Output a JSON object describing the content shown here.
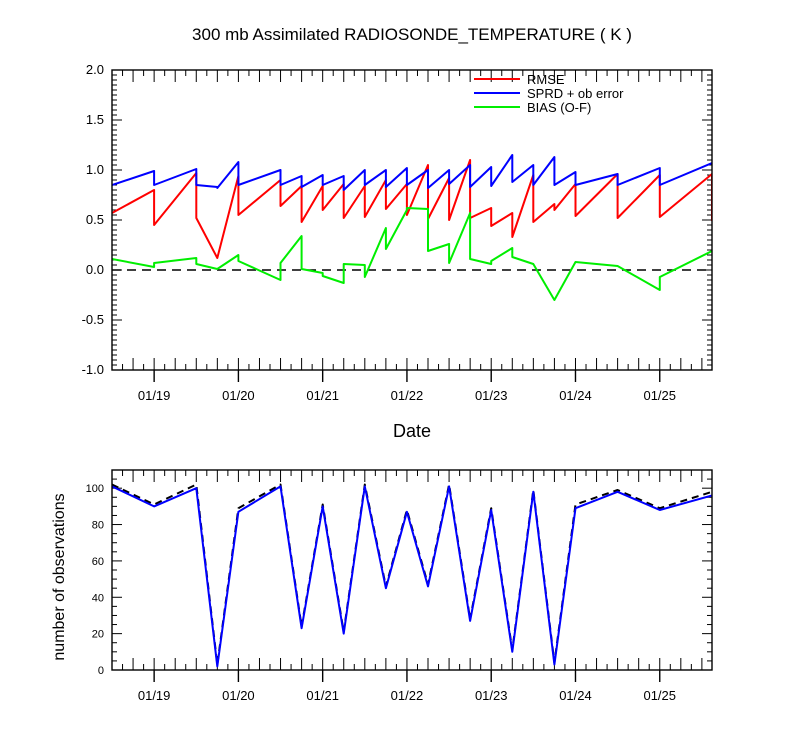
{
  "chart_data": [
    {
      "type": "line",
      "title": "300 mb Assimilated RADIOSONDE_TEMPERATURE ( K )",
      "xlabel": "Date",
      "ylabel": "",
      "xlim": [
        0,
        14.24
      ],
      "ylim": [
        -1.0,
        2.0
      ],
      "x_unit": "days from 01/18 12Z",
      "xticks": [
        {
          "x": 1,
          "label": "01/19"
        },
        {
          "x": 3,
          "label": "01/20"
        },
        {
          "x": 5,
          "label": "01/21"
        },
        {
          "x": 7,
          "label": "01/22"
        },
        {
          "x": 9,
          "label": "01/23"
        },
        {
          "x": 11,
          "label": "01/24"
        },
        {
          "x": 13,
          "label": "01/25"
        }
      ],
      "yticks": [
        -1.0,
        -0.5,
        0.0,
        0.5,
        1.0,
        1.5,
        2.0
      ],
      "ytick_labels": [
        "-1.0",
        "-0.5",
        "0.0",
        "0.5",
        "1.0",
        "1.5",
        "2.0"
      ],
      "zero_line": true,
      "legend_position": "top-right",
      "series": [
        {
          "name": "RMSE",
          "color": "#ff0000",
          "points": [
            [
              0,
              0.57
            ],
            [
              1,
              0.8
            ],
            [
              1,
              0.45
            ],
            [
              2,
              0.97
            ],
            [
              2,
              0.52
            ],
            [
              2.5,
              0.12
            ],
            [
              3,
              0.94
            ],
            [
              3,
              0.55
            ],
            [
              4,
              0.9
            ],
            [
              4,
              0.64
            ],
            [
              4.5,
              0.84
            ],
            [
              4.5,
              0.48
            ],
            [
              5,
              0.84
            ],
            [
              5,
              0.6
            ],
            [
              5.5,
              0.86
            ],
            [
              5.5,
              0.52
            ],
            [
              6,
              0.84
            ],
            [
              6,
              0.53
            ],
            [
              6.5,
              0.9
            ],
            [
              6.5,
              0.61
            ],
            [
              7,
              0.86
            ],
            [
              7,
              0.55
            ],
            [
              7.5,
              1.05
            ],
            [
              7.5,
              0.51
            ],
            [
              8,
              0.92
            ],
            [
              8,
              0.5
            ],
            [
              8.5,
              1.1
            ],
            [
              8.5,
              0.52
            ],
            [
              9,
              0.62
            ],
            [
              9,
              0.44
            ],
            [
              9.5,
              0.57
            ],
            [
              9.5,
              0.33
            ],
            [
              10,
              0.95
            ],
            [
              10,
              0.48
            ],
            [
              10.5,
              0.66
            ],
            [
              10.5,
              0.6
            ],
            [
              11,
              0.86
            ],
            [
              11,
              0.54
            ],
            [
              12,
              0.96
            ],
            [
              12,
              0.52
            ],
            [
              13,
              0.95
            ],
            [
              13,
              0.53
            ],
            [
              14.24,
              0.96
            ],
            [
              14.24,
              0.49
            ]
          ]
        },
        {
          "name": "SPRD + ob error",
          "color": "#0000ff",
          "points": [
            [
              0,
              0.85
            ],
            [
              1,
              0.99
            ],
            [
              1,
              0.85
            ],
            [
              2,
              1.01
            ],
            [
              2,
              0.85
            ],
            [
              2.5,
              0.83
            ],
            [
              2.5,
              0.82
            ],
            [
              3,
              1.08
            ],
            [
              3,
              0.85
            ],
            [
              4,
              1.0
            ],
            [
              4,
              0.85
            ],
            [
              4.5,
              0.94
            ],
            [
              4.5,
              0.83
            ],
            [
              5,
              0.95
            ],
            [
              5,
              0.85
            ],
            [
              5.5,
              0.94
            ],
            [
              5.5,
              0.8
            ],
            [
              6,
              1.0
            ],
            [
              6,
              0.85
            ],
            [
              6.5,
              1.0
            ],
            [
              6.5,
              0.83
            ],
            [
              7,
              1.02
            ],
            [
              7,
              0.85
            ],
            [
              7.5,
              1.0
            ],
            [
              7.5,
              0.82
            ],
            [
              8,
              1.0
            ],
            [
              8,
              0.86
            ],
            [
              8.5,
              1.05
            ],
            [
              8.5,
              0.83
            ],
            [
              9,
              1.03
            ],
            [
              9,
              0.84
            ],
            [
              9.5,
              1.15
            ],
            [
              9.5,
              0.88
            ],
            [
              10,
              1.05
            ],
            [
              10,
              0.85
            ],
            [
              10.5,
              1.13
            ],
            [
              10.5,
              0.85
            ],
            [
              11,
              0.98
            ],
            [
              11,
              0.85
            ],
            [
              12,
              0.96
            ],
            [
              12,
              0.85
            ],
            [
              13,
              1.02
            ],
            [
              13,
              0.85
            ],
            [
              14.24,
              1.07
            ]
          ]
        },
        {
          "name": "BIAS (O-F)",
          "color": "#00ee00",
          "points": [
            [
              0,
              0.11
            ],
            [
              1,
              0.03
            ],
            [
              1,
              0.07
            ],
            [
              2,
              0.12
            ],
            [
              2,
              0.06
            ],
            [
              2.5,
              0.01
            ],
            [
              3,
              0.15
            ],
            [
              3,
              0.09
            ],
            [
              4,
              -0.1
            ],
            [
              4,
              0.07
            ],
            [
              4.5,
              0.34
            ],
            [
              4.5,
              0.01
            ],
            [
              5,
              -0.03
            ],
            [
              5,
              -0.06
            ],
            [
              5.5,
              -0.13
            ],
            [
              5.5,
              0.06
            ],
            [
              6,
              0.05
            ],
            [
              6,
              -0.07
            ],
            [
              6.5,
              0.42
            ],
            [
              6.5,
              0.21
            ],
            [
              7,
              0.6
            ],
            [
              7,
              0.62
            ],
            [
              7.5,
              0.61
            ],
            [
              7.5,
              0.19
            ],
            [
              8,
              0.26
            ],
            [
              8,
              0.07
            ],
            [
              8.5,
              0.57
            ],
            [
              8.5,
              0.11
            ],
            [
              9,
              0.06
            ],
            [
              9,
              0.09
            ],
            [
              9.5,
              0.22
            ],
            [
              9.5,
              0.13
            ],
            [
              10,
              0.06
            ],
            [
              10.5,
              -0.3
            ],
            [
              11,
              0.08
            ],
            [
              12,
              0.04
            ],
            [
              13,
              -0.2
            ],
            [
              13,
              -0.07
            ],
            [
              14.24,
              0.19
            ]
          ]
        }
      ]
    },
    {
      "type": "line",
      "title": "",
      "xlabel": "",
      "ylabel": "number of observations",
      "xlim": [
        0,
        14.24
      ],
      "ylim": [
        0,
        110
      ],
      "x_unit": "days from 01/18 12Z",
      "xticks": [
        {
          "x": 1,
          "label": "01/19"
        },
        {
          "x": 3,
          "label": "01/20"
        },
        {
          "x": 5,
          "label": "01/21"
        },
        {
          "x": 7,
          "label": "01/22"
        },
        {
          "x": 9,
          "label": "01/23"
        },
        {
          "x": 11,
          "label": "01/24"
        },
        {
          "x": 13,
          "label": "01/25"
        }
      ],
      "yticks": [
        0,
        20,
        40,
        60,
        80,
        100
      ],
      "ytick_labels": [
        "0",
        "20",
        "40",
        "60",
        "80",
        "100"
      ],
      "series": [
        {
          "style": "dashed",
          "color": "#000000",
          "points": [
            [
              0,
              102
            ],
            [
              1,
              91
            ],
            [
              2,
              102
            ],
            [
              2.5,
              3
            ],
            [
              3,
              89
            ],
            [
              4,
              102
            ],
            [
              4.5,
              24
            ],
            [
              5,
              91
            ],
            [
              5.5,
              21
            ],
            [
              6,
              102
            ],
            [
              6.5,
              46
            ],
            [
              7,
              88
            ],
            [
              7.5,
              47
            ],
            [
              8,
              102
            ],
            [
              8.5,
              28
            ],
            [
              9,
              89
            ],
            [
              9.5,
              11
            ],
            [
              10,
              99
            ],
            [
              10.5,
              4
            ],
            [
              11,
              91
            ],
            [
              12,
              99
            ],
            [
              13,
              89
            ],
            [
              14.24,
              98
            ]
          ]
        },
        {
          "style": "solid",
          "color": "#0000ff",
          "points": [
            [
              0,
              101
            ],
            [
              1,
              90
            ],
            [
              2,
              100
            ],
            [
              2.5,
              2
            ],
            [
              3,
              87
            ],
            [
              4,
              101
            ],
            [
              4.5,
              23
            ],
            [
              5,
              90
            ],
            [
              5.5,
              20
            ],
            [
              6,
              101
            ],
            [
              6.5,
              45
            ],
            [
              7,
              87
            ],
            [
              7.5,
              46
            ],
            [
              8,
              101
            ],
            [
              8.5,
              27
            ],
            [
              9,
              88
            ],
            [
              9.5,
              10
            ],
            [
              10,
              98
            ],
            [
              10.5,
              3
            ],
            [
              11,
              89
            ],
            [
              12,
              98
            ],
            [
              13,
              88
            ],
            [
              14.24,
              96
            ]
          ]
        }
      ]
    }
  ]
}
